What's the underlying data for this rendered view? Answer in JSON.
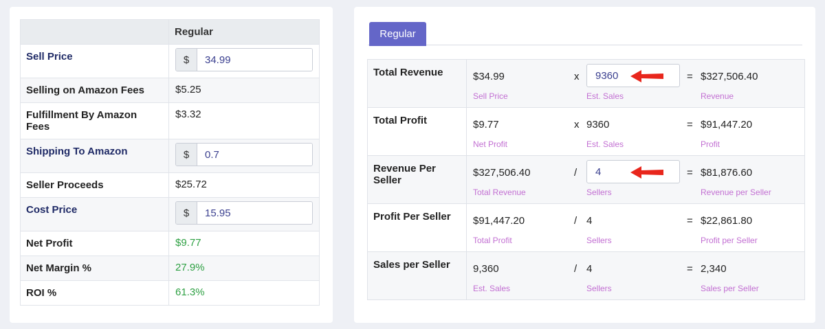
{
  "left": {
    "header": {
      "label_col": "",
      "value_col": "Regular"
    },
    "rows": [
      {
        "label": "Sell Price",
        "editable": true,
        "prefix": "$",
        "value": "34.99"
      },
      {
        "label": "Selling on Amazon Fees",
        "value": "$5.25"
      },
      {
        "label": "Fulfillment By Amazon Fees",
        "value": "$3.32"
      },
      {
        "label": "Shipping To Amazon",
        "editable": true,
        "prefix": "$",
        "value": "0.7"
      },
      {
        "label": "Seller Proceeds",
        "value": "$25.72"
      },
      {
        "label": "Cost Price",
        "editable": true,
        "prefix": "$",
        "value": "15.95"
      },
      {
        "label": "Net Profit",
        "value": "$9.77",
        "color": "#2ea043"
      },
      {
        "label": "Net Margin %",
        "value": "27.9%",
        "color": "#2ea043"
      },
      {
        "label": "ROI %",
        "value": "61.3%",
        "color": "#2ea043"
      }
    ]
  },
  "right": {
    "tab": "Regular",
    "rows": [
      {
        "label": "Total Revenue",
        "a": "$34.99",
        "a_sub": "Sell Price",
        "op": "x",
        "b": "9360",
        "b_sub": "Est. Sales",
        "b_input": true,
        "eq": "=",
        "result": "$327,506.40",
        "result_sub": "Revenue"
      },
      {
        "label": "Total Profit",
        "a": "$9.77",
        "a_sub": "Net Profit",
        "op": "x",
        "b": "9360",
        "b_sub": "Est. Sales",
        "eq": "=",
        "result": "$91,447.20",
        "result_sub": "Profit"
      },
      {
        "label": "Revenue Per Seller",
        "a": "$327,506.40",
        "a_sub": "Total Revenue",
        "op": "/",
        "b": "4",
        "b_sub": "Sellers",
        "b_input": true,
        "eq": "=",
        "result": "$81,876.60",
        "result_sub": "Revenue per Seller"
      },
      {
        "label": "Profit Per Seller",
        "a": "$91,447.20",
        "a_sub": "Total Profit",
        "op": "/",
        "b": "4",
        "b_sub": "Sellers",
        "eq": "=",
        "result": "$22,861.80",
        "result_sub": "Profit per Seller"
      },
      {
        "label": "Sales per Seller",
        "a": "9,360",
        "a_sub": "Est. Sales",
        "op": "/",
        "b": "4",
        "b_sub": "Sellers",
        "eq": "=",
        "result": "2,340",
        "result_sub": "Sales per Seller"
      }
    ]
  },
  "colors": {
    "accent": "#6466c8",
    "positive": "#2ea043",
    "sublabel": "#c26fd2",
    "arrow": "#e8261c"
  },
  "icons": {
    "annotation": "red-arrow-icon"
  }
}
